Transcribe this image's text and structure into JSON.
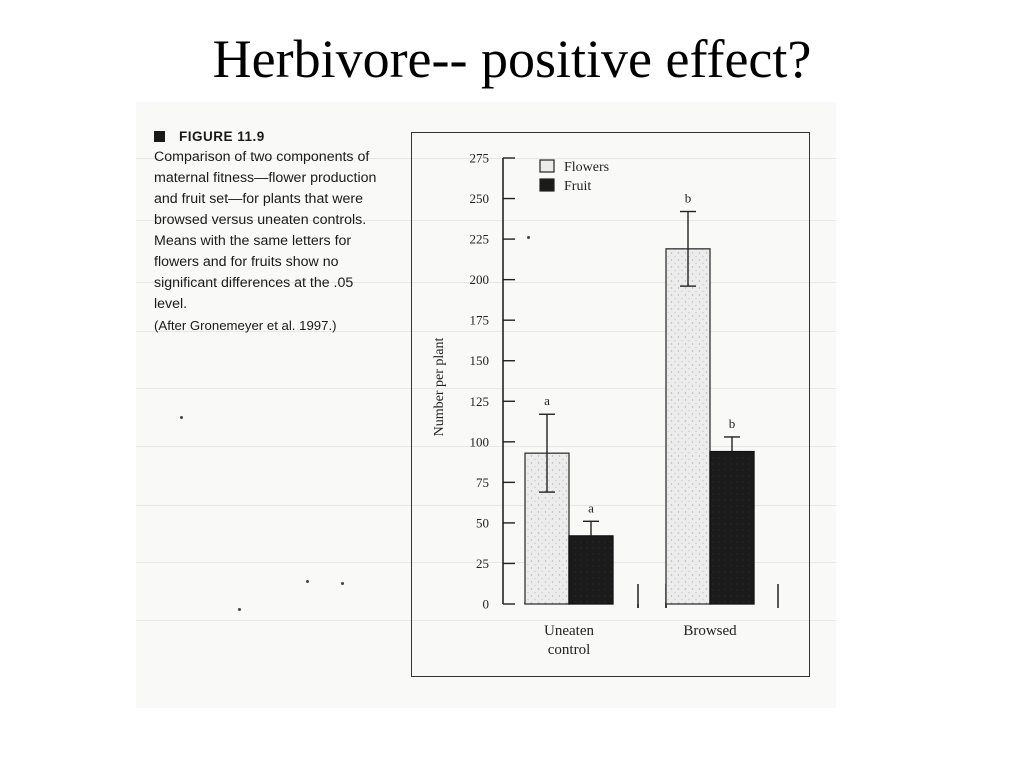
{
  "slide": {
    "title": "Herbivore-- positive effect?"
  },
  "figure": {
    "label": "FIGURE 11.9",
    "caption": "Comparison of two components of maternal fitness—flower production and fruit set—for plants that were browsed versus uneaten controls. Means with the same letters for flowers and for fruits show no significant differences at the .05 level.",
    "source": "(After Gronemeyer et al. 1997.)"
  },
  "colors": {
    "flowers": "#ebebeb",
    "fruit": "#1b1b1b",
    "axis": "#222222"
  },
  "chart_data": {
    "type": "bar",
    "title": "",
    "xlabel": "",
    "ylabel": "Number per plant",
    "ylim": [
      0,
      275
    ],
    "yticks": [
      0,
      25,
      50,
      75,
      100,
      125,
      150,
      175,
      200,
      225,
      250,
      275
    ],
    "categories": [
      [
        "Uneaten",
        "control"
      ],
      [
        "Browsed"
      ]
    ],
    "series": [
      {
        "name": "Flowers",
        "values": [
          93,
          219
        ],
        "error": [
          24,
          23
        ],
        "sig_letters": [
          "a",
          "b"
        ]
      },
      {
        "name": "Fruit",
        "values": [
          42,
          94
        ],
        "error": [
          9,
          9
        ],
        "sig_letters": [
          "a",
          "b"
        ]
      }
    ],
    "legend": "top-left",
    "grid": false
  }
}
